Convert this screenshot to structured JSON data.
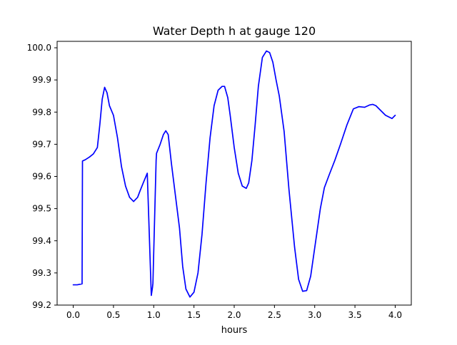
{
  "chart_data": {
    "type": "line",
    "title": "Water Depth h at gauge 120",
    "xlabel": "hours",
    "ylabel": "",
    "xlim": [
      -0.2,
      4.2
    ],
    "ylim": [
      99.2,
      100.02
    ],
    "xticks": [
      0.0,
      0.5,
      1.0,
      1.5,
      2.0,
      2.5,
      3.0,
      3.5,
      4.0
    ],
    "xtick_labels": [
      "0.0",
      "0.5",
      "1.0",
      "1.5",
      "2.0",
      "2.5",
      "3.0",
      "3.5",
      "4.0"
    ],
    "yticks": [
      99.2,
      99.3,
      99.4,
      99.5,
      99.6,
      99.7,
      99.8,
      99.9,
      100.0
    ],
    "ytick_labels": [
      "99.2",
      "99.3",
      "99.4",
      "99.5",
      "99.6",
      "99.7",
      "99.8",
      "99.9",
      "100.0"
    ],
    "grid": false,
    "legend": false,
    "series": [
      {
        "color": "#0000ff",
        "x": [
          0.0,
          0.05,
          0.11,
          0.115,
          0.15,
          0.2,
          0.25,
          0.3,
          0.33,
          0.36,
          0.39,
          0.42,
          0.45,
          0.5,
          0.55,
          0.6,
          0.65,
          0.7,
          0.75,
          0.8,
          0.83,
          0.87,
          0.92,
          0.97,
          0.985,
          0.99,
          1.03,
          1.035,
          1.08,
          1.12,
          1.15,
          1.18,
          1.22,
          1.27,
          1.32,
          1.36,
          1.4,
          1.45,
          1.5,
          1.55,
          1.6,
          1.65,
          1.7,
          1.75,
          1.8,
          1.85,
          1.88,
          1.92,
          1.95,
          2.0,
          2.05,
          2.1,
          2.15,
          2.18,
          2.22,
          2.26,
          2.3,
          2.35,
          2.4,
          2.44,
          2.48,
          2.52,
          2.56,
          2.62,
          2.68,
          2.75,
          2.8,
          2.85,
          2.9,
          2.95,
          2.99,
          3.03,
          3.07,
          3.12,
          3.18,
          3.25,
          3.32,
          3.4,
          3.48,
          3.55,
          3.62,
          3.68,
          3.72,
          3.76,
          3.8,
          3.84,
          3.88,
          3.92,
          3.96,
          4.0
        ],
        "y": [
          99.263,
          99.263,
          99.266,
          99.648,
          99.652,
          99.66,
          99.67,
          99.69,
          99.76,
          99.84,
          99.877,
          99.86,
          99.82,
          99.79,
          99.72,
          99.63,
          99.57,
          99.535,
          99.522,
          99.535,
          99.555,
          99.58,
          99.61,
          99.23,
          99.255,
          99.268,
          99.65,
          99.672,
          99.7,
          99.73,
          99.742,
          99.73,
          99.64,
          99.54,
          99.44,
          99.32,
          99.25,
          99.225,
          99.24,
          99.3,
          99.42,
          99.58,
          99.72,
          99.82,
          99.868,
          99.88,
          99.88,
          99.845,
          99.79,
          99.69,
          99.61,
          99.57,
          99.563,
          99.58,
          99.65,
          99.76,
          99.88,
          99.97,
          99.99,
          99.985,
          99.955,
          99.9,
          99.85,
          99.74,
          99.56,
          99.38,
          99.28,
          99.243,
          99.245,
          99.29,
          99.36,
          99.43,
          99.5,
          99.565,
          99.605,
          99.65,
          99.7,
          99.76,
          99.81,
          99.817,
          99.815,
          99.822,
          99.824,
          99.82,
          99.81,
          99.8,
          99.79,
          99.785,
          99.78,
          99.79
        ]
      }
    ]
  }
}
